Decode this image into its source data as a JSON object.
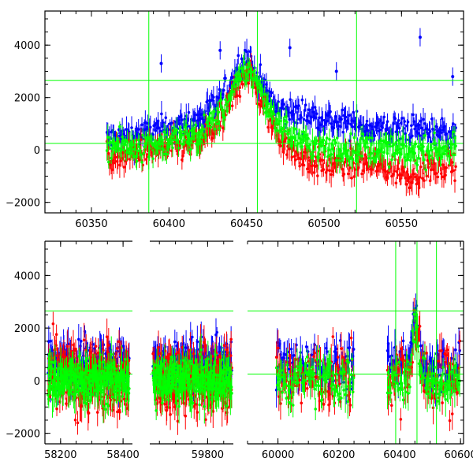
{
  "chart_data": [
    {
      "type": "scatter",
      "panel": "top",
      "xlim": [
        60320,
        60590
      ],
      "ylim": [
        -2400,
        5300
      ],
      "xticks": [
        60350,
        60400,
        60450,
        60500,
        60550
      ],
      "xtick_labels": [
        "60350",
        "60400",
        "60450",
        "60500",
        "60550"
      ],
      "yticks": [
        -2000,
        0,
        2000,
        4000
      ],
      "ytick_labels": [
        "−2000",
        "0",
        "2000",
        "4000"
      ],
      "error_bars": true,
      "reference_lines": {
        "horizontal_y": [
          250,
          2650
        ],
        "vertical_x": [
          60387,
          60457,
          60521
        ],
        "color": "#00ff00"
      },
      "series": [
        {
          "color": "#0000ff",
          "x": [
            60360,
            60375,
            60390,
            60405,
            60420,
            60435,
            60445,
            60450,
            60455,
            60460,
            60470,
            60480,
            60495,
            60510,
            60525,
            60540,
            60555,
            60570,
            60585
          ],
          "y": [
            400,
            500,
            700,
            900,
            1200,
            2000,
            3200,
            3600,
            3000,
            2500,
            1500,
            1400,
            1300,
            1000,
            900,
            800,
            800,
            700,
            700
          ],
          "outliers": [
            [
              60395,
              3300
            ],
            [
              60433,
              3800
            ],
            [
              60478,
              3900
            ],
            [
              60508,
              3000
            ],
            [
              60562,
              4300
            ],
            [
              60583,
              2800
            ]
          ]
        },
        {
          "color": "#ff0000",
          "x": [
            60360,
            60375,
            60390,
            60405,
            60420,
            60435,
            60445,
            60450,
            60455,
            60460,
            60470,
            60480,
            60495,
            60510,
            60525,
            60540,
            60555,
            60570,
            60585
          ],
          "y": [
            -300,
            -200,
            0,
            100,
            300,
            1200,
            2500,
            3100,
            2600,
            1700,
            700,
            -100,
            -500,
            -600,
            -500,
            -700,
            -900,
            -700,
            -500
          ]
        },
        {
          "color": "#00ff00",
          "x": [
            60360,
            60375,
            60390,
            60405,
            60420,
            60435,
            60445,
            60450,
            60455,
            60460,
            60470,
            60480,
            60495,
            60510,
            60525,
            60540,
            60555,
            60570,
            60585
          ],
          "y": [
            200,
            100,
            200,
            400,
            600,
            1500,
            2600,
            3100,
            2800,
            2100,
            1100,
            500,
            100,
            0,
            100,
            0,
            -100,
            0,
            100
          ]
        }
      ]
    },
    {
      "type": "scatter",
      "panel": "bottom",
      "axis_note": "broken x-axis with gaps between observing seasons",
      "segments": [
        {
          "xlim": [
            58150,
            58430
          ],
          "xticks": [
            58200,
            58400
          ],
          "xtick_labels": [
            "58200",
            "58400"
          ],
          "data_range": [
            58160,
            58420
          ]
        },
        {
          "xlim": [
            59620,
            59880
          ],
          "xticks": [
            59800
          ],
          "xtick_labels": [
            "59800"
          ],
          "data_range": [
            59630,
            59875
          ]
        },
        {
          "xlim": [
            59900,
            60610
          ],
          "xticks": [
            60000,
            60200,
            60400,
            60600
          ],
          "xtick_labels": [
            "60000",
            "60200",
            "60400",
            "60600"
          ],
          "data_range": [
            [
              59995,
              60250
            ],
            [
              60360,
              60600
            ]
          ]
        }
      ],
      "ylim": [
        -2400,
        5300
      ],
      "yticks": [
        -2000,
        0,
        2000,
        4000
      ],
      "ytick_labels": [
        "−2000",
        "0",
        "2000",
        "4000"
      ],
      "error_bars": true,
      "reference_lines": {
        "horizontal_y": [
          250,
          2650
        ],
        "vertical_x": [
          60387,
          60457,
          60521
        ],
        "color": "#00ff00"
      },
      "series": [
        {
          "color": "#0000ff",
          "typical_level": 600,
          "spread": 900
        },
        {
          "color": "#ff0000",
          "typical_level": 100,
          "spread": 1400
        },
        {
          "color": "#00ff00",
          "typical_level": 0,
          "spread": 900
        }
      ]
    }
  ]
}
